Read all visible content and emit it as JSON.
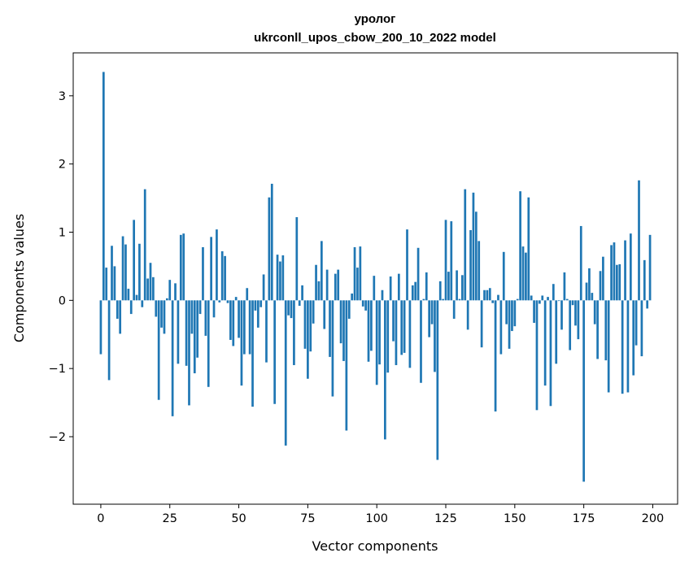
{
  "chart_data": {
    "type": "bar",
    "title": "уролог",
    "subtitle": "ukrconll_upos_cbow_200_10_2022 model",
    "xlabel": "Vector components",
    "ylabel": "Components values",
    "xlim": [
      -10,
      209
    ],
    "ylim": [
      -2.99,
      3.63
    ],
    "xticks": [
      0,
      25,
      50,
      75,
      100,
      125,
      150,
      175,
      200
    ],
    "yticks": [
      -2,
      -1,
      0,
      1,
      2,
      3
    ],
    "bar_color": "#1f77b4",
    "bar_width": 0.8,
    "grid": false,
    "x": [
      0,
      1,
      2,
      3,
      4,
      5,
      6,
      7,
      8,
      9,
      10,
      11,
      12,
      13,
      14,
      15,
      16,
      17,
      18,
      19,
      20,
      21,
      22,
      23,
      24,
      25,
      26,
      27,
      28,
      29,
      30,
      31,
      32,
      33,
      34,
      35,
      36,
      37,
      38,
      39,
      40,
      41,
      42,
      43,
      44,
      45,
      46,
      47,
      48,
      49,
      50,
      51,
      52,
      53,
      54,
      55,
      56,
      57,
      58,
      59,
      60,
      61,
      62,
      63,
      64,
      65,
      66,
      67,
      68,
      69,
      70,
      71,
      72,
      73,
      74,
      75,
      76,
      77,
      78,
      79,
      80,
      81,
      82,
      83,
      84,
      85,
      86,
      87,
      88,
      89,
      90,
      91,
      92,
      93,
      94,
      95,
      96,
      97,
      98,
      99,
      100,
      101,
      102,
      103,
      104,
      105,
      106,
      107,
      108,
      109,
      110,
      111,
      112,
      113,
      114,
      115,
      116,
      117,
      118,
      119,
      120,
      121,
      122,
      123,
      124,
      125,
      126,
      127,
      128,
      129,
      130,
      131,
      132,
      133,
      134,
      135,
      136,
      137,
      138,
      139,
      140,
      141,
      142,
      143,
      144,
      145,
      146,
      147,
      148,
      149,
      150,
      151,
      152,
      153,
      154,
      155,
      156,
      157,
      158,
      159,
      160,
      161,
      162,
      163,
      164,
      165,
      166,
      167,
      168,
      169,
      170,
      171,
      172,
      173,
      174,
      175,
      176,
      177,
      178,
      179,
      180,
      181,
      182,
      183,
      184,
      185,
      186,
      187,
      188,
      189,
      190,
      191,
      192,
      193,
      194,
      195,
      196,
      197,
      198,
      199
    ],
    "values": [
      -0.79,
      3.35,
      0.48,
      -1.17,
      0.8,
      0.5,
      -0.27,
      -0.49,
      0.94,
      0.82,
      0.17,
      -0.2,
      1.18,
      0.08,
      0.83,
      -0.1,
      1.63,
      0.32,
      0.55,
      0.34,
      -0.24,
      -1.46,
      -0.4,
      -0.49,
      0.03,
      0.3,
      -1.7,
      0.25,
      -0.93,
      0.96,
      0.98,
      -0.96,
      -1.54,
      -0.49,
      -1.07,
      -0.84,
      -0.2,
      0.78,
      -0.52,
      -1.27,
      0.93,
      -0.25,
      1.04,
      -0.03,
      0.72,
      0.65,
      -0.04,
      -0.58,
      -0.67,
      0.05,
      -0.55,
      -1.25,
      -0.79,
      0.18,
      -0.79,
      -1.56,
      -0.15,
      -0.4,
      -0.1,
      0.38,
      -0.91,
      1.51,
      1.71,
      -1.52,
      0.67,
      0.57,
      0.66,
      -2.13,
      -0.22,
      -0.26,
      -0.95,
      1.22,
      -0.08,
      0.22,
      -0.71,
      -1.15,
      -0.75,
      -0.34,
      0.52,
      0.28,
      0.87,
      -0.42,
      0.45,
      -0.83,
      -1.41,
      0.39,
      0.45,
      -0.63,
      -0.89,
      -1.91,
      -0.27,
      0.1,
      0.78,
      0.48,
      0.79,
      -0.09,
      -0.15,
      -0.9,
      -0.74,
      0.36,
      -1.24,
      -0.94,
      0.15,
      -2.04,
      -1.06,
      0.35,
      -0.6,
      -0.95,
      0.39,
      -0.8,
      -0.77,
      1.04,
      -0.99,
      0.22,
      0.27,
      0.77,
      -1.21,
      0.02,
      0.41,
      -0.54,
      -0.35,
      -1.05,
      -2.34,
      0.28,
      0.02,
      1.18,
      0.42,
      1.16,
      -0.27,
      0.44,
      0.02,
      0.37,
      1.63,
      -0.43,
      1.03,
      1.58,
      1.3,
      0.87,
      -0.69,
      0.15,
      0.15,
      0.18,
      -0.04,
      -1.63,
      0.08,
      -0.79,
      0.71,
      -0.35,
      -0.71,
      -0.45,
      -0.38,
      0.02,
      1.6,
      0.79,
      0.7,
      1.51,
      0.07,
      -0.33,
      -1.61,
      -0.05,
      0.07,
      -1.25,
      0.05,
      -1.55,
      0.24,
      -0.93,
      -0.01,
      -0.43,
      0.41,
      0.02,
      -0.73,
      -0.07,
      -0.37,
      -0.57,
      1.09,
      -2.66,
      0.26,
      0.47,
      0.11,
      -0.35,
      -0.86,
      0.43,
      0.64,
      -0.88,
      -1.35,
      0.81,
      0.85,
      0.52,
      0.53,
      -1.37,
      0.88,
      -1.35,
      0.98,
      -1.1,
      -0.66,
      1.76,
      -0.82,
      0.59,
      -0.12,
      0.96
    ]
  }
}
